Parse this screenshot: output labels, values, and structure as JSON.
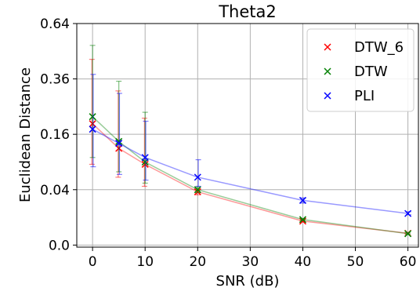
{
  "chart_data": {
    "type": "line",
    "title": "Theta2",
    "xlabel": "SNR (dB)",
    "ylabel": "Euclidean Distance",
    "x_ticks": [
      0,
      10,
      20,
      30,
      40,
      50,
      60
    ],
    "x_tick_labels": [
      "0",
      "10",
      "20",
      "30",
      "40",
      "50",
      "60"
    ],
    "y_ticks": [
      0.0,
      0.04,
      0.16,
      0.36,
      0.64
    ],
    "y_tick_labels": [
      "0.0",
      "0.04",
      "0.16",
      "0.36",
      "0.64"
    ],
    "y_scale": "sqrt",
    "xlim": [
      -3,
      62
    ],
    "ylim": [
      0,
      0.64
    ],
    "grid": true,
    "legend_position": "top-right",
    "x": [
      0,
      5,
      10,
      20,
      40,
      60
    ],
    "series": [
      {
        "name": "DTW_6",
        "color": "#ff0000",
        "values": [
          0.192,
          0.122,
          0.085,
          0.037,
          0.0075,
          0.0018
        ],
        "err_low": [
          0.085,
          0.06,
          0.045,
          0.033,
          0.007,
          0.0016
        ],
        "err_high": [
          0.45,
          0.31,
          0.21,
          0.041,
          0.008,
          0.002
        ]
      },
      {
        "name": "DTW",
        "color": "#008000",
        "values": [
          0.215,
          0.14,
          0.09,
          0.04,
          0.0085,
          0.0017
        ],
        "err_low": [
          0.1,
          0.07,
          0.05,
          0.036,
          0.008,
          0.0015
        ],
        "err_high": [
          0.52,
          0.35,
          0.23,
          0.044,
          0.009,
          0.0019
        ]
      },
      {
        "name": "PLI",
        "color": "#0000ff",
        "values": [
          0.175,
          0.135,
          0.1,
          0.06,
          0.026,
          0.013
        ],
        "err_low": [
          0.08,
          0.065,
          0.055,
          0.045,
          0.023,
          0.012
        ],
        "err_high": [
          0.38,
          0.3,
          0.2,
          0.095,
          0.029,
          0.0145
        ]
      }
    ]
  }
}
